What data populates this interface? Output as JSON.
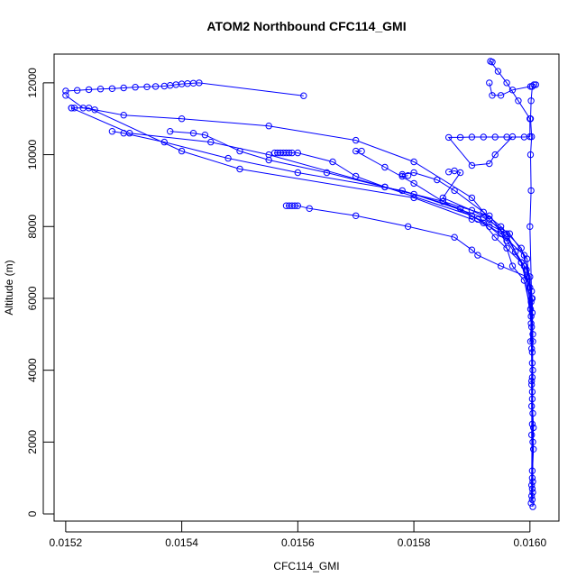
{
  "chart_data": {
    "type": "line",
    "title": "ATOM2 Northbound CFC114_GMI",
    "xlabel": "CFC114_GMI",
    "ylabel": "Altitude (m)",
    "xlim": [
      0.01518,
      0.01605
    ],
    "ylim": [
      -200,
      12800
    ],
    "x_ticks": [
      {
        "value": 0.0152,
        "label": "0.0152"
      },
      {
        "value": 0.0154,
        "label": "0.0154"
      },
      {
        "value": 0.0156,
        "label": "0.0156"
      },
      {
        "value": 0.0158,
        "label": "0.0158"
      },
      {
        "value": 0.016,
        "label": "0.0160"
      }
    ],
    "y_ticks": [
      {
        "value": 0,
        "label": "0"
      },
      {
        "value": 2000,
        "label": "2000"
      },
      {
        "value": 4000,
        "label": "4000"
      },
      {
        "value": 6000,
        "label": "6000"
      },
      {
        "value": 8000,
        "label": "8000"
      },
      {
        "value": 10000,
        "label": "10000"
      },
      {
        "value": 12000,
        "label": "12000"
      }
    ],
    "grid": false,
    "legend": "none",
    "color": "#0000ff",
    "marker": "open-circle",
    "series": [
      {
        "points": [
          [
            0.016005,
            200
          ],
          [
            0.016004,
            1200
          ],
          [
            0.016006,
            2400
          ],
          [
            0.016003,
            3600
          ],
          [
            0.016005,
            4800
          ],
          [
            0.016004,
            6000
          ],
          [
            0.015995,
            6600
          ],
          [
            0.01595,
            6900
          ],
          [
            0.01591,
            7200
          ],
          [
            0.0159,
            7350
          ],
          [
            0.01587,
            7700
          ],
          [
            0.01579,
            8000
          ],
          [
            0.0157,
            8300
          ],
          [
            0.01562,
            8500
          ],
          [
            0.0156,
            8580
          ],
          [
            0.015595,
            8580
          ],
          [
            0.01559,
            8580
          ],
          [
            0.015585,
            8580
          ],
          [
            0.01558,
            8580
          ]
        ]
      },
      {
        "points": [
          [
            0.016002,
            300
          ],
          [
            0.016006,
            1800
          ],
          [
            0.016003,
            3000
          ],
          [
            0.016004,
            4500
          ],
          [
            0.016001,
            5700
          ],
          [
            0.01599,
            6500
          ],
          [
            0.01597,
            6900
          ],
          [
            0.01596,
            7400
          ],
          [
            0.01595,
            7900
          ],
          [
            0.01593,
            8300
          ],
          [
            0.01585,
            8700
          ],
          [
            0.01575,
            9100
          ],
          [
            0.0157,
            9400
          ],
          [
            0.01566,
            9800
          ],
          [
            0.0156,
            10050
          ],
          [
            0.01559,
            10050
          ],
          [
            0.015585,
            10050
          ],
          [
            0.01558,
            10050
          ],
          [
            0.015575,
            10050
          ],
          [
            0.01557,
            10050
          ],
          [
            0.015565,
            10050
          ],
          [
            0.01556,
            10050
          ]
        ]
      },
      {
        "points": [
          [
            0.016004,
            400
          ],
          [
            0.016005,
            2000
          ],
          [
            0.016004,
            3800
          ],
          [
            0.016003,
            5200
          ],
          [
            0.016,
            6300
          ],
          [
            0.015985,
            7000
          ],
          [
            0.01596,
            7600
          ],
          [
            0.01593,
            8000
          ],
          [
            0.0159,
            8200
          ],
          [
            0.0158,
            8800
          ],
          [
            0.0155,
            9600
          ],
          [
            0.0154,
            10100
          ],
          [
            0.01524,
            11300
          ],
          [
            0.015215,
            11300
          ],
          [
            0.01521,
            11300
          ]
        ]
      },
      {
        "points": [
          [
            0.016003,
            500
          ],
          [
            0.016004,
            2500
          ],
          [
            0.016005,
            4000
          ],
          [
            0.016002,
            5500
          ],
          [
            0.015994,
            6800
          ],
          [
            0.015975,
            7300
          ],
          [
            0.01596,
            7800
          ],
          [
            0.0159,
            8300
          ],
          [
            0.01575,
            9100
          ],
          [
            0.01555,
            10000
          ],
          [
            0.01545,
            10350
          ],
          [
            0.01531,
            10600
          ],
          [
            0.01521,
            11300
          ]
        ]
      },
      {
        "points": [
          [
            0.016005,
            600
          ],
          [
            0.016003,
            2200
          ],
          [
            0.016004,
            4200
          ],
          [
            0.016002,
            5900
          ],
          [
            0.015985,
            7000
          ],
          [
            0.01594,
            7700
          ],
          [
            0.01592,
            8100
          ],
          [
            0.01588,
            8500
          ],
          [
            0.01578,
            9000
          ],
          [
            0.0156,
            9500
          ],
          [
            0.01548,
            9900
          ],
          [
            0.01537,
            10350
          ],
          [
            0.0153,
            10600
          ],
          [
            0.01528,
            10650
          ]
        ]
      },
      {
        "points": [
          [
            0.016004,
            700
          ],
          [
            0.016005,
            2800
          ],
          [
            0.016003,
            4600
          ],
          [
            0.016003,
            6200
          ],
          [
            0.01599,
            7200
          ],
          [
            0.01595,
            7800
          ],
          [
            0.01591,
            8200
          ],
          [
            0.01585,
            8700
          ],
          [
            0.0158,
            9200
          ],
          [
            0.01575,
            9650
          ],
          [
            0.0157,
            10100
          ],
          [
            0.01571,
            10100
          ]
        ]
      },
      {
        "points": [
          [
            0.016003,
            800
          ],
          [
            0.016004,
            3200
          ],
          [
            0.016005,
            5000
          ],
          [
            0.016,
            6600
          ],
          [
            0.015985,
            7400
          ],
          [
            0.01595,
            8000
          ],
          [
            0.01592,
            8400
          ],
          [
            0.01587,
            9000
          ],
          [
            0.01584,
            9300
          ],
          [
            0.0158,
            9500
          ],
          [
            0.01578,
            9450
          ],
          [
            0.01578,
            9400
          ],
          [
            0.01579,
            9420
          ]
        ]
      },
      {
        "points": [
          [
            0.016005,
            900
          ],
          [
            0.016004,
            3400
          ],
          [
            0.016002,
            5300
          ],
          [
            0.01599,
            6900
          ],
          [
            0.01596,
            7700
          ],
          [
            0.01593,
            8200
          ],
          [
            0.0159,
            8450
          ],
          [
            0.01585,
            8800
          ],
          [
            0.01588,
            9500
          ],
          [
            0.01587,
            9550
          ],
          [
            0.01586,
            9520
          ]
        ]
      },
      {
        "points": [
          [
            0.016004,
            1000
          ],
          [
            0.016003,
            3700
          ],
          [
            0.016004,
            5600
          ],
          [
            0.015995,
            7100
          ],
          [
            0.015965,
            7800
          ],
          [
            0.01592,
            8250
          ],
          [
            0.0158,
            8900
          ],
          [
            0.01565,
            9500
          ],
          [
            0.01555,
            9850
          ],
          [
            0.0155,
            10100
          ],
          [
            0.01544,
            10550
          ],
          [
            0.01542,
            10600
          ],
          [
            0.01538,
            10650
          ]
        ]
      },
      {
        "points": [
          [
            0.016001,
            4800
          ],
          [
            0.016003,
            6000
          ],
          [
            0.016,
            8000
          ],
          [
            0.016002,
            9000
          ],
          [
            0.016001,
            10000
          ],
          [
            0.016003,
            10500
          ],
          [
            0.016001,
            11000
          ],
          [
            0.016002,
            11500
          ],
          [
            0.016004,
            11900
          ],
          [
            0.016007,
            11950
          ],
          [
            0.01601,
            11950
          ]
        ]
      },
      {
        "points": [
          [
            0.016001,
            11900
          ],
          [
            0.01597,
            11800
          ],
          [
            0.01595,
            11650
          ],
          [
            0.015935,
            11650
          ],
          [
            0.01593,
            12000
          ]
        ]
      },
      {
        "points": [
          [
            0.015935,
            12580
          ],
          [
            0.015932,
            12600
          ],
          [
            0.015945,
            12320
          ],
          [
            0.01596,
            12000
          ],
          [
            0.01598,
            11500
          ],
          [
            0.016,
            11000
          ],
          [
            0.016,
            10500
          ],
          [
            0.01599,
            10490
          ],
          [
            0.01596,
            10490
          ],
          [
            0.01594,
            10490
          ],
          [
            0.01592,
            10490
          ],
          [
            0.0159,
            10490
          ],
          [
            0.01588,
            10480
          ],
          [
            0.01586,
            10480
          ],
          [
            0.0159,
            9700
          ],
          [
            0.01593,
            9750
          ],
          [
            0.01594,
            10000
          ],
          [
            0.01597,
            10500
          ]
        ]
      },
      {
        "points": [
          [
            0.0152,
            11650
          ],
          [
            0.01523,
            11300
          ],
          [
            0.01525,
            11250
          ],
          [
            0.0153,
            11100
          ],
          [
            0.0154,
            11000
          ],
          [
            0.01555,
            10800
          ],
          [
            0.0157,
            10400
          ],
          [
            0.0158,
            9800
          ],
          [
            0.0159,
            8800
          ],
          [
            0.01593,
            8200
          ]
        ]
      },
      {
        "points": [
          [
            0.01561,
            11640
          ],
          [
            0.01543,
            12000
          ],
          [
            0.01542,
            11990
          ],
          [
            0.01541,
            11980
          ],
          [
            0.0154,
            11970
          ],
          [
            0.01539,
            11950
          ],
          [
            0.01538,
            11930
          ],
          [
            0.01537,
            11910
          ],
          [
            0.015355,
            11900
          ],
          [
            0.01534,
            11890
          ],
          [
            0.01532,
            11880
          ],
          [
            0.0153,
            11860
          ],
          [
            0.01528,
            11840
          ],
          [
            0.01526,
            11830
          ],
          [
            0.01524,
            11810
          ],
          [
            0.01522,
            11790
          ],
          [
            0.0152,
            11770
          ]
        ]
      }
    ]
  }
}
